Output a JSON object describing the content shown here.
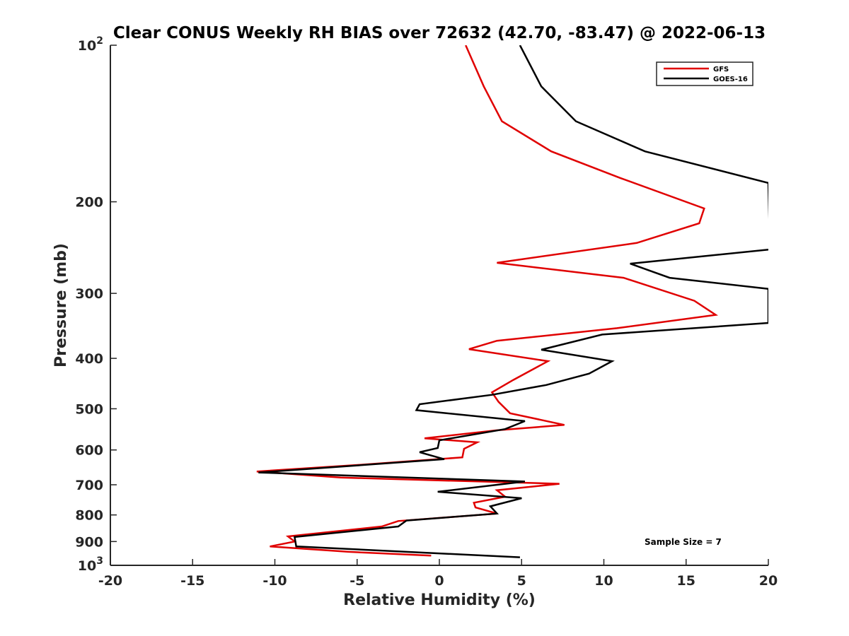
{
  "chart_data": {
    "type": "line",
    "title": "Clear CONUS Weekly RH BIAS over 72632 (42.70, -83.47) @ 2022-06-13",
    "xlabel": "Relative Humidity (%)",
    "ylabel": "Pressure (mb)",
    "xlim": [
      -20,
      20
    ],
    "ylim": [
      100,
      1000
    ],
    "y_scale": "log",
    "y_reversed": true,
    "grid": false,
    "legend_position": "top-right",
    "x_ticks": [
      {
        "value": -20,
        "label": "-20"
      },
      {
        "value": -15,
        "label": "-15"
      },
      {
        "value": -10,
        "label": "-10"
      },
      {
        "value": -5,
        "label": "-5"
      },
      {
        "value": 0,
        "label": "0"
      },
      {
        "value": 5,
        "label": "5"
      },
      {
        "value": 10,
        "label": "10"
      },
      {
        "value": 15,
        "label": "15"
      },
      {
        "value": 20,
        "label": "20"
      }
    ],
    "y_ticks": [
      {
        "value": 100,
        "base": "10",
        "exp": "2"
      },
      {
        "value": 200,
        "label": "200"
      },
      {
        "value": 300,
        "label": "300"
      },
      {
        "value": 400,
        "label": "400"
      },
      {
        "value": 500,
        "label": "500"
      },
      {
        "value": 600,
        "label": "600"
      },
      {
        "value": 700,
        "label": "700"
      },
      {
        "value": 800,
        "label": "800"
      },
      {
        "value": 900,
        "label": "900"
      },
      {
        "value": 1000,
        "base": "10",
        "exp": "3"
      }
    ],
    "series": [
      {
        "name": "GFS",
        "color": "#e00000",
        "points": [
          [
            1.6,
            100
          ],
          [
            2.7,
            120
          ],
          [
            3.8,
            140
          ],
          [
            6.8,
            160
          ],
          [
            11,
            180
          ],
          [
            16.1,
            206
          ],
          [
            15.8,
            220
          ],
          [
            12,
            240
          ],
          [
            3.5,
            262
          ],
          [
            11.2,
            280
          ],
          [
            15.5,
            310
          ],
          [
            16.8,
            330
          ],
          [
            10.8,
            350
          ],
          [
            3.5,
            370
          ],
          [
            1.8,
            384
          ],
          [
            6.6,
            405
          ],
          [
            4.5,
            440
          ],
          [
            3.2,
            465
          ],
          [
            3.6,
            485
          ],
          [
            4.3,
            510
          ],
          [
            7.6,
            537
          ],
          [
            3.5,
            550
          ],
          [
            -0.9,
            570
          ],
          [
            2.3,
            580
          ],
          [
            1.5,
            597
          ],
          [
            1.4,
            620
          ],
          [
            -4.5,
            640
          ],
          [
            -11.1,
            660
          ],
          [
            -6,
            678
          ],
          [
            7.3,
            697
          ],
          [
            3.5,
            717
          ],
          [
            4,
            738
          ],
          [
            2.1,
            758
          ],
          [
            2.2,
            774
          ],
          [
            3.5,
            795
          ],
          [
            -2.5,
            822
          ],
          [
            -3.5,
            842
          ],
          [
            -9.2,
            880
          ],
          [
            -8.8,
            900
          ],
          [
            -10.3,
            920
          ],
          [
            -5.5,
            942
          ],
          [
            -0.5,
            958
          ]
        ]
      },
      {
        "name": "GOES-16",
        "color": "#000000",
        "points": [
          [
            4.9,
            100
          ],
          [
            6.2,
            120
          ],
          [
            8.3,
            140
          ],
          [
            12.5,
            160
          ],
          [
            20,
            184
          ],
          [
            20.1,
            247
          ],
          [
            11.6,
            263
          ],
          [
            14,
            280
          ],
          [
            20,
            294
          ],
          [
            20,
            342
          ],
          [
            9.9,
            360
          ],
          [
            6.2,
            385
          ],
          [
            10.5,
            405
          ],
          [
            9.1,
            428
          ],
          [
            6.5,
            450
          ],
          [
            3.2,
            470
          ],
          [
            -1.2,
            490
          ],
          [
            -1.4,
            503
          ],
          [
            5.2,
            528
          ],
          [
            4,
            547
          ],
          [
            0,
            575
          ],
          [
            -0.1,
            595
          ],
          [
            -1.2,
            606
          ],
          [
            0.3,
            625
          ],
          [
            -11,
            663
          ],
          [
            5.2,
            690
          ],
          [
            -0.1,
            722
          ],
          [
            5,
            743
          ],
          [
            3.1,
            770
          ],
          [
            3.5,
            795
          ],
          [
            -2,
            820
          ],
          [
            -2.5,
            842
          ],
          [
            -8.8,
            882
          ],
          [
            -8.7,
            920
          ],
          [
            4.9,
            965
          ]
        ]
      }
    ],
    "annotations": [
      "Sample Size = 7"
    ]
  }
}
